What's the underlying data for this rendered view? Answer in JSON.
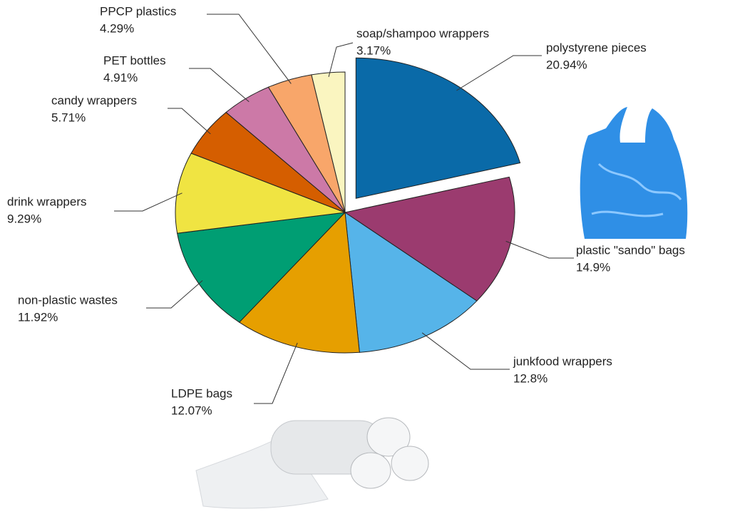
{
  "chart_data": {
    "type": "pie",
    "categories": [
      "polystyrene pieces",
      "plastic \"sando\" bags",
      "junkfood wrappers",
      "LDPE bags",
      "non-plastic wastes",
      "drink wrappers",
      "candy wrappers",
      "PET bottles",
      "PPCP plastics",
      "soap/shampoo wrappers"
    ],
    "values": [
      20.94,
      14.9,
      12.8,
      12.07,
      11.92,
      9.29,
      5.71,
      4.91,
      4.29,
      3.17
    ],
    "value_labels": [
      "20.94%",
      "14.9%",
      "12.8%",
      "12.07%",
      "11.92%",
      "9.29%",
      "5.71%",
      "4.91%",
      "4.29%",
      "3.17%"
    ],
    "colors": [
      "#0a6aa8",
      "#9b3b6f",
      "#56b4e9",
      "#e69f00",
      "#009e73",
      "#f0e442",
      "#d55e00",
      "#cc79a7",
      "#f8a66a",
      "#faf5c0"
    ]
  }
}
